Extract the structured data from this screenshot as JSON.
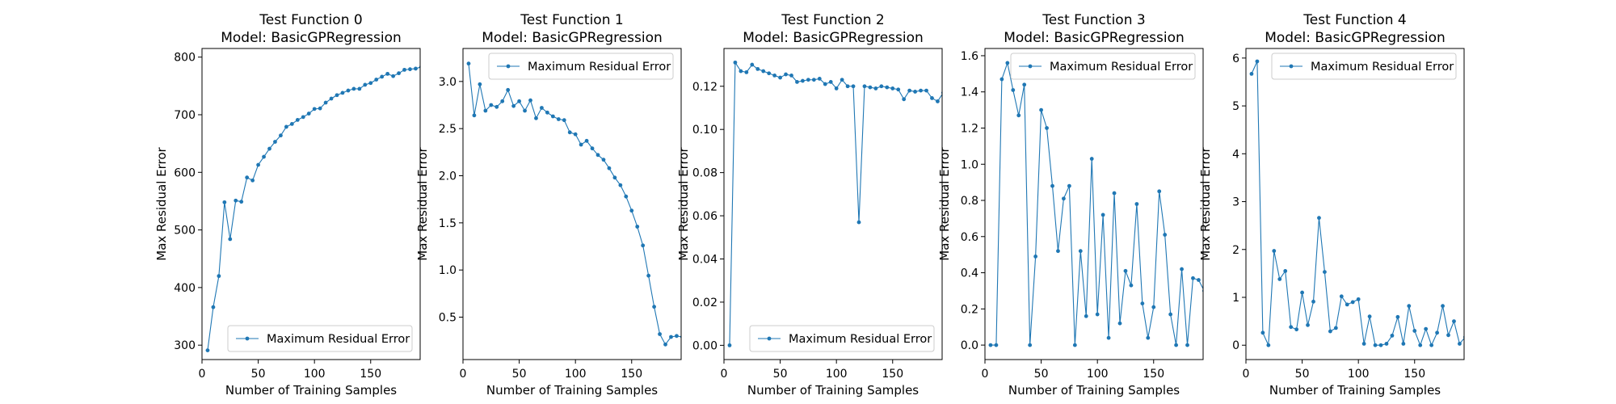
{
  "figure": {
    "background": "#ffffff",
    "line_color": "#1f77b4"
  },
  "chart_data": [
    {
      "type": "line",
      "title": "Test Function 0\nModel: BasicGPRegression",
      "title_lines": [
        "Test Function 0",
        "Model: BasicGPRegression"
      ],
      "xlabel": "Number of Training Samples",
      "ylabel": "Max Residual Error",
      "xlim": [
        0,
        194
      ],
      "ylim": [
        275,
        815
      ],
      "xticks": [
        0,
        50,
        100,
        150
      ],
      "xtick_labels": [
        "0",
        "50",
        "100",
        "150"
      ],
      "yticks": [
        300,
        400,
        500,
        600,
        700,
        800
      ],
      "ytick_labels": [
        "300",
        "400",
        "500",
        "600",
        "700",
        "800"
      ],
      "legend_position": "lower right",
      "grid": false,
      "series": [
        {
          "name": "Maximum Residual Error",
          "color": "#1f77b4",
          "marker": "circle",
          "x": [
            5,
            10,
            15,
            20,
            25,
            30,
            35,
            40,
            45,
            50,
            55,
            60,
            65,
            70,
            75,
            80,
            85,
            90,
            95,
            100,
            105,
            110,
            115,
            120,
            125,
            130,
            135,
            140,
            145,
            150,
            155,
            160,
            165,
            170,
            175,
            180,
            185,
            190,
            195
          ],
          "y": [
            291,
            366,
            420,
            548,
            484,
            551,
            549,
            591,
            586,
            613,
            627,
            641,
            653,
            664,
            679,
            684,
            691,
            696,
            702,
            710,
            711,
            721,
            728,
            734,
            738,
            742,
            745,
            745,
            752,
            755,
            761,
            766,
            771,
            767,
            772,
            778,
            779,
            780,
            783
          ]
        }
      ]
    },
    {
      "type": "line",
      "title": "Test Function 1\nModel: BasicGPRegression",
      "title_lines": [
        "Test Function 1",
        "Model: BasicGPRegression"
      ],
      "xlabel": "Number of Training Samples",
      "ylabel": "Max Residual Error",
      "xlim": [
        0,
        194
      ],
      "ylim": [
        0.05,
        3.35
      ],
      "xticks": [
        0,
        50,
        100,
        150
      ],
      "xtick_labels": [
        "0",
        "50",
        "100",
        "150"
      ],
      "yticks": [
        0.5,
        1.0,
        1.5,
        2.0,
        2.5,
        3.0
      ],
      "ytick_labels": [
        "0.5",
        "1.0",
        "1.5",
        "2.0",
        "2.5",
        "3.0"
      ],
      "legend_position": "upper right",
      "grid": false,
      "series": [
        {
          "name": "Maximum Residual Error",
          "color": "#1f77b4",
          "marker": "circle",
          "x": [
            5,
            10,
            15,
            20,
            25,
            30,
            35,
            40,
            45,
            50,
            55,
            60,
            65,
            70,
            75,
            80,
            85,
            90,
            95,
            100,
            105,
            110,
            115,
            120,
            125,
            130,
            135,
            140,
            145,
            150,
            155,
            160,
            165,
            170,
            175,
            180,
            185,
            190,
            195
          ],
          "y": [
            3.19,
            2.64,
            2.97,
            2.69,
            2.75,
            2.73,
            2.79,
            2.91,
            2.74,
            2.79,
            2.69,
            2.8,
            2.61,
            2.72,
            2.67,
            2.63,
            2.6,
            2.59,
            2.46,
            2.44,
            2.33,
            2.37,
            2.29,
            2.22,
            2.17,
            2.08,
            1.98,
            1.9,
            1.78,
            1.63,
            1.46,
            1.26,
            0.94,
            0.61,
            0.32,
            0.21,
            0.29,
            0.3,
            0.29
          ]
        }
      ]
    },
    {
      "type": "line",
      "title": "Test Function 2\nModel: BasicGPRegression",
      "title_lines": [
        "Test Function 2",
        "Model: BasicGPRegression"
      ],
      "xlabel": "Number of Training Samples",
      "ylabel": "Max Residual Error",
      "xlim": [
        0,
        194
      ],
      "ylim": [
        -0.0066,
        0.1375
      ],
      "xticks": [
        0,
        50,
        100,
        150
      ],
      "xtick_labels": [
        "0",
        "50",
        "100",
        "150"
      ],
      "yticks": [
        0.0,
        0.02,
        0.04,
        0.06,
        0.08,
        0.1,
        0.12
      ],
      "ytick_labels": [
        "0.00",
        "0.02",
        "0.04",
        "0.06",
        "0.08",
        "0.10",
        "0.12"
      ],
      "legend_position": "lower right",
      "grid": false,
      "series": [
        {
          "name": "Maximum Residual Error",
          "color": "#1f77b4",
          "marker": "circle",
          "x": [
            5,
            10,
            15,
            20,
            25,
            30,
            35,
            40,
            45,
            50,
            55,
            60,
            65,
            70,
            75,
            80,
            85,
            90,
            95,
            100,
            105,
            110,
            115,
            120,
            125,
            130,
            135,
            140,
            145,
            150,
            155,
            160,
            165,
            170,
            175,
            180,
            185,
            190,
            195
          ],
          "y": [
            0.0,
            0.131,
            0.127,
            0.1265,
            0.13,
            0.128,
            0.127,
            0.126,
            0.125,
            0.124,
            0.1255,
            0.125,
            0.122,
            0.1225,
            0.123,
            0.123,
            0.1235,
            0.121,
            0.122,
            0.119,
            0.123,
            0.12,
            0.12,
            0.057,
            0.12,
            0.1195,
            0.119,
            0.12,
            0.1195,
            0.119,
            0.1185,
            0.114,
            0.118,
            0.1175,
            0.118,
            0.118,
            0.1145,
            0.113,
            0.117
          ]
        }
      ]
    },
    {
      "type": "line",
      "title": "Test Function 3\nModel: BasicGPRegression",
      "title_lines": [
        "Test Function 3",
        "Model: BasicGPRegression"
      ],
      "xlabel": "Number of Training Samples",
      "ylabel": "Max Residual Error",
      "xlim": [
        0,
        194
      ],
      "ylim": [
        -0.08,
        1.64
      ],
      "xticks": [
        0,
        50,
        100,
        150
      ],
      "xtick_labels": [
        "0",
        "50",
        "100",
        "150"
      ],
      "yticks": [
        0.0,
        0.2,
        0.4,
        0.6,
        0.8,
        1.0,
        1.2,
        1.4,
        1.6
      ],
      "ytick_labels": [
        "0.0",
        "0.2",
        "0.4",
        "0.6",
        "0.8",
        "1.0",
        "1.2",
        "1.4",
        "1.6"
      ],
      "legend_position": "upper right",
      "grid": false,
      "series": [
        {
          "name": "Maximum Residual Error",
          "color": "#1f77b4",
          "marker": "circle",
          "x": [
            5,
            10,
            15,
            20,
            25,
            30,
            35,
            40,
            45,
            50,
            55,
            60,
            65,
            70,
            75,
            80,
            85,
            90,
            95,
            100,
            105,
            110,
            115,
            120,
            125,
            130,
            135,
            140,
            145,
            150,
            155,
            160,
            165,
            170,
            175,
            180,
            185,
            190,
            195
          ],
          "y": [
            0.0,
            0.0,
            1.47,
            1.56,
            1.41,
            1.27,
            1.44,
            0.0,
            0.49,
            1.3,
            1.2,
            0.88,
            0.52,
            0.81,
            0.88,
            0.0,
            0.52,
            0.16,
            1.03,
            0.17,
            0.72,
            0.04,
            0.84,
            0.12,
            0.41,
            0.33,
            0.78,
            0.23,
            0.04,
            0.21,
            0.85,
            0.61,
            0.17,
            0.0,
            0.42,
            0.0,
            0.37,
            0.36,
            0.3
          ]
        }
      ]
    },
    {
      "type": "line",
      "title": "Test Function 4\nModel: BasicGPRegression",
      "title_lines": [
        "Test Function 4",
        "Model: BasicGPRegression"
      ],
      "xlabel": "Number of Training Samples",
      "ylabel": "Max Residual Error",
      "xlim": [
        0,
        194
      ],
      "ylim": [
        -0.3,
        6.2
      ],
      "xticks": [
        0,
        50,
        100,
        150
      ],
      "xtick_labels": [
        "0",
        "50",
        "100",
        "150"
      ],
      "yticks": [
        0,
        1,
        2,
        3,
        4,
        5,
        6
      ],
      "ytick_labels": [
        "0",
        "1",
        "2",
        "3",
        "4",
        "5",
        "6"
      ],
      "legend_position": "upper right",
      "grid": false,
      "series": [
        {
          "name": "Maximum Residual Error",
          "color": "#1f77b4",
          "marker": "circle",
          "x": [
            5,
            10,
            15,
            20,
            25,
            30,
            35,
            40,
            45,
            50,
            55,
            60,
            65,
            70,
            75,
            80,
            85,
            90,
            95,
            100,
            105,
            110,
            115,
            120,
            125,
            130,
            135,
            140,
            145,
            150,
            155,
            160,
            165,
            170,
            175,
            180,
            185,
            190,
            195
          ],
          "y": [
            5.67,
            5.93,
            0.26,
            0.0,
            1.97,
            1.38,
            1.55,
            0.38,
            0.33,
            1.1,
            0.42,
            0.91,
            2.66,
            1.53,
            0.29,
            0.36,
            1.02,
            0.85,
            0.9,
            0.96,
            0.03,
            0.6,
            0.0,
            0.0,
            0.03,
            0.2,
            0.59,
            0.03,
            0.82,
            0.3,
            0.0,
            0.34,
            0.0,
            0.26,
            0.82,
            0.21,
            0.5,
            0.03,
            0.17
          ]
        }
      ]
    }
  ]
}
